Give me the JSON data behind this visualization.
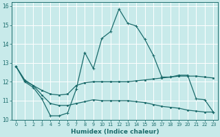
{
  "xlabel": "Humidex (Indice chaleur)",
  "background_color": "#c8eaea",
  "grid_color": "#b0d8d8",
  "line_color": "#1a6b6b",
  "xlim": [
    -0.5,
    23.5
  ],
  "ylim": [
    10,
    16.2
  ],
  "xticks": [
    0,
    1,
    2,
    3,
    4,
    5,
    6,
    7,
    8,
    9,
    10,
    11,
    12,
    13,
    14,
    15,
    16,
    17,
    18,
    19,
    20,
    21,
    22,
    23
  ],
  "yticks": [
    10,
    11,
    12,
    13,
    14,
    15,
    16
  ],
  "line1_x": [
    0,
    1,
    2,
    3,
    4,
    5,
    6,
    7,
    8,
    9,
    10,
    11,
    12,
    13,
    14,
    15,
    16,
    17,
    18,
    19,
    20,
    21,
    22,
    23
  ],
  "line1_y": [
    12.8,
    12.0,
    11.7,
    11.1,
    10.2,
    10.2,
    10.35,
    11.6,
    13.55,
    12.7,
    14.3,
    14.65,
    15.85,
    15.1,
    14.95,
    14.25,
    13.4,
    12.25,
    12.25,
    12.35,
    12.35,
    11.1,
    11.05,
    10.4
  ],
  "line2_x": [
    0,
    1,
    2,
    3,
    4,
    5,
    6,
    7,
    8,
    9,
    10,
    11,
    12,
    13,
    14,
    15,
    16,
    17,
    18,
    19,
    20,
    21,
    22,
    23
  ],
  "line2_y": [
    12.8,
    12.05,
    11.8,
    11.55,
    11.35,
    11.3,
    11.35,
    11.8,
    11.95,
    12.0,
    12.0,
    12.0,
    12.0,
    12.0,
    12.05,
    12.1,
    12.15,
    12.2,
    12.25,
    12.3,
    12.3,
    12.3,
    12.25,
    12.2
  ],
  "line3_x": [
    0,
    1,
    2,
    3,
    4,
    5,
    6,
    7,
    8,
    9,
    10,
    11,
    12,
    13,
    14,
    15,
    16,
    17,
    18,
    19,
    20,
    21,
    22,
    23
  ],
  "line3_y": [
    12.8,
    12.1,
    11.8,
    11.3,
    10.85,
    10.75,
    10.75,
    10.85,
    10.95,
    11.05,
    11.0,
    11.0,
    11.0,
    11.0,
    10.95,
    10.9,
    10.8,
    10.7,
    10.65,
    10.6,
    10.5,
    10.45,
    10.4,
    10.4
  ]
}
